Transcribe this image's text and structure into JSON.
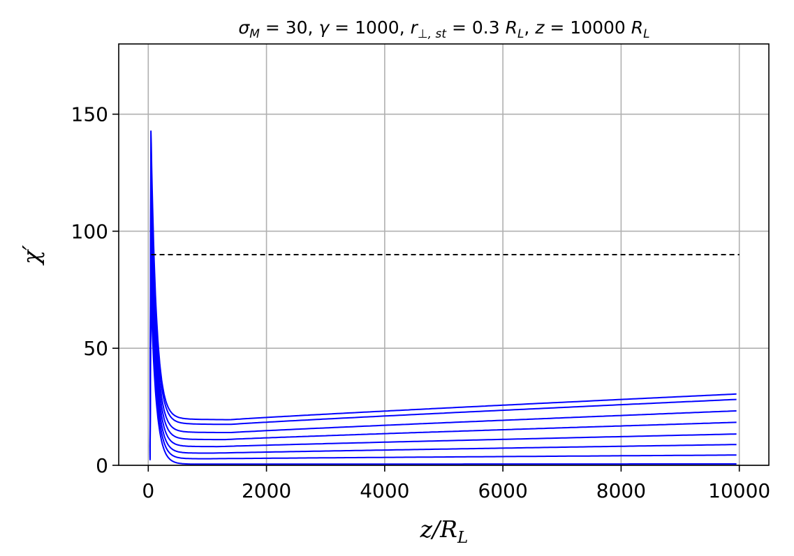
{
  "chart_data": {
    "type": "line",
    "title": "σ_M = 30, γ = 1000, r_⊥,st = 0.3 R_L, z = 10000 R_L",
    "title_parts": {
      "sigma": "σ",
      "sigma_sub": "M",
      "sigma_rest": " = 30, ",
      "gamma": "γ",
      "gamma_rest": " = 1000, ",
      "r": "r",
      "r_sub": "⊥, st",
      "r_rest": " = 0.3 ",
      "RL1": "R",
      "RL1_sub": "L",
      "comma": ", ",
      "z": "z",
      "z_rest": " = 10000 ",
      "RL2": "R",
      "RL2_sub": "L"
    },
    "xlabel": "z/R_L",
    "xlabel_parts": {
      "z": "z/R",
      "sub": "L"
    },
    "ylabel": "χ′",
    "xlim": [
      -500,
      10500
    ],
    "ylim": [
      0,
      180
    ],
    "xticks": [
      0,
      2000,
      4000,
      6000,
      8000,
      10000
    ],
    "yticks": [
      0,
      50,
      100,
      150
    ],
    "grid": true,
    "line_color": "#0000ff",
    "reference_line": {
      "y": 90,
      "x_start": 50,
      "x_end": 10000,
      "style": "dashed",
      "color": "#000000"
    },
    "series": [
      {
        "start_x": 30,
        "peak": 143,
        "min_x": 1400,
        "min_y": 19.5,
        "end_y": 30.5
      },
      {
        "start_x": 30,
        "peak": 134,
        "min_x": 1400,
        "min_y": 17.5,
        "end_y": 28.2
      },
      {
        "start_x": 30,
        "peak": 124,
        "min_x": 1400,
        "min_y": 14.0,
        "end_y": 23.3
      },
      {
        "start_x": 30,
        "peak": 114,
        "min_x": 1300,
        "min_y": 11.0,
        "end_y": 18.4
      },
      {
        "start_x": 30,
        "peak": 104,
        "min_x": 1200,
        "min_y": 8.0,
        "end_y": 13.4
      },
      {
        "start_x": 30,
        "peak": 94,
        "min_x": 1100,
        "min_y": 5.2,
        "end_y": 8.9
      },
      {
        "start_x": 30,
        "peak": 84,
        "min_x": 1000,
        "min_y": 2.8,
        "end_y": 4.4
      },
      {
        "start_x": 30,
        "peak": 74,
        "min_x": 900,
        "min_y": 0.5,
        "end_y": 0.6
      }
    ]
  }
}
